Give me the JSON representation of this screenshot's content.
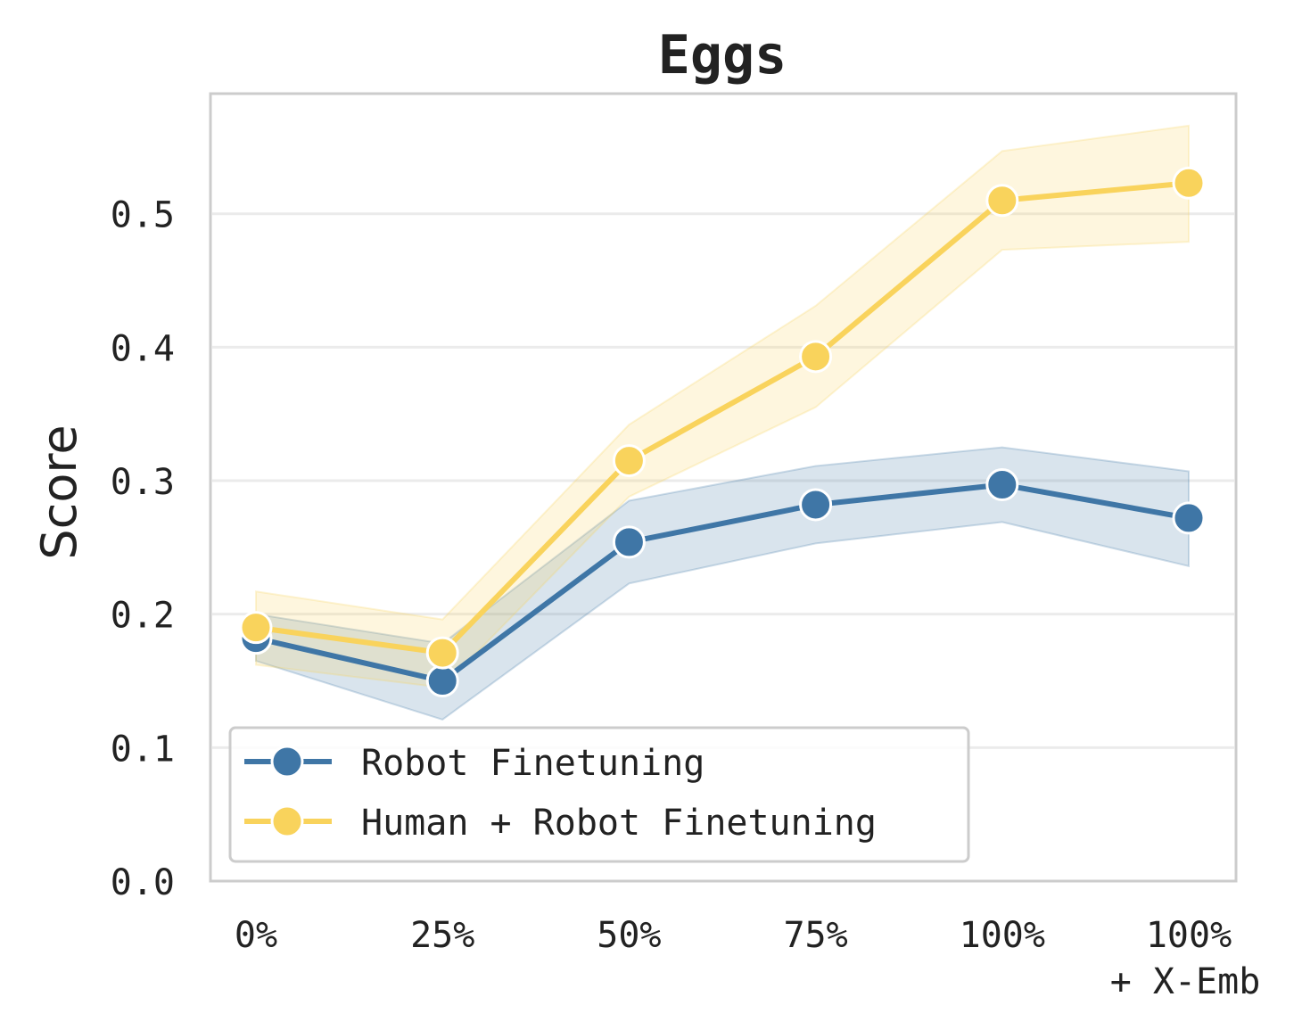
{
  "chart_data": {
    "type": "line",
    "title": "Eggs",
    "xlabel": "",
    "ylabel": "Score",
    "categories": [
      "0%",
      "25%",
      "50%",
      "75%",
      "100%",
      "100%\n+ X-Emb"
    ],
    "yticks": [
      "0.0",
      "0.1",
      "0.2",
      "0.3",
      "0.4",
      "0.5"
    ],
    "ylim": [
      0.0,
      0.59
    ],
    "grid": "horizontal",
    "legend_position": "lower-left",
    "series": [
      {
        "name": "Robot Finetuning",
        "color": "#3f76a6",
        "values": [
          0.182,
          0.15,
          0.254,
          0.282,
          0.297,
          0.272
        ],
        "ci_low": [
          0.165,
          0.121,
          0.223,
          0.253,
          0.269,
          0.236
        ],
        "ci_high": [
          0.2,
          0.178,
          0.285,
          0.311,
          0.325,
          0.307
        ]
      },
      {
        "name": "Human + Robot Finetuning",
        "color": "#f9d35c",
        "values": [
          0.19,
          0.171,
          0.315,
          0.393,
          0.51,
          0.523
        ],
        "ci_low": [
          0.162,
          0.145,
          0.288,
          0.355,
          0.473,
          0.479
        ],
        "ci_high": [
          0.217,
          0.196,
          0.342,
          0.431,
          0.547,
          0.566
        ]
      }
    ]
  }
}
